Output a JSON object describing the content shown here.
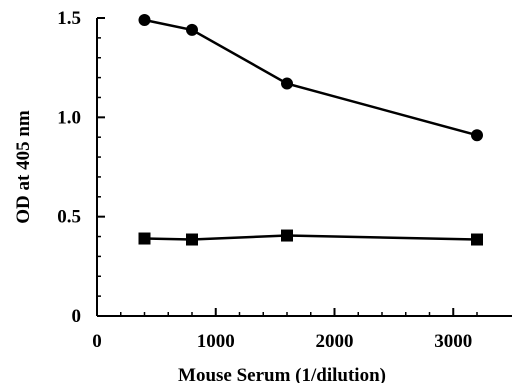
{
  "chart_data": {
    "type": "line",
    "xlabel": "Mouse Serum (1/dilution)",
    "ylabel": "OD at 405 nm",
    "xlim": [
      0,
      3500
    ],
    "ylim": [
      0,
      1.5
    ],
    "x_ticks": [
      0,
      1000,
      2000,
      3000
    ],
    "x_tick_labels": [
      "0",
      "1000",
      "2000",
      "3000"
    ],
    "y_ticks": [
      0,
      0.5,
      1.0,
      1.5
    ],
    "y_tick_labels": [
      "0",
      "0.5",
      "1.0",
      "1.5"
    ],
    "grid": false,
    "series": [
      {
        "marker": "circle",
        "x": [
          400,
          800,
          1600,
          3200
        ],
        "y": [
          1.49,
          1.44,
          1.17,
          0.91
        ]
      },
      {
        "marker": "square",
        "x": [
          400,
          800,
          1600,
          3200
        ],
        "y": [
          0.39,
          0.385,
          0.405,
          0.385
        ]
      }
    ]
  }
}
